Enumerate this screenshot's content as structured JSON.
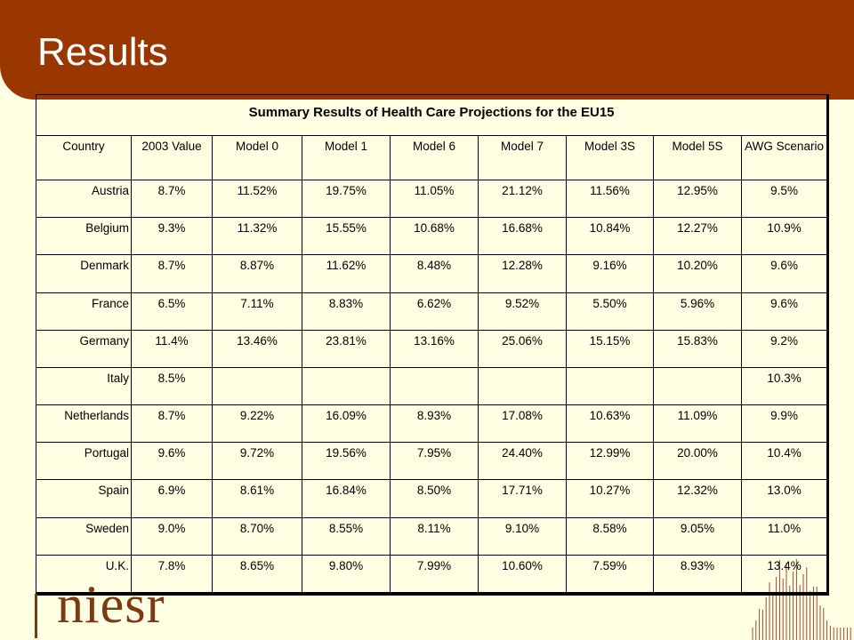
{
  "slide": {
    "title": "Results"
  },
  "table": {
    "caption": "Summary Results of Health Care Projections for the EU15",
    "headers": [
      "Country",
      "2003 Value",
      "Model 0",
      "Model 1",
      "Model 6",
      "Model 7",
      "Model 3S",
      "Model 5S",
      "AWG Scenario"
    ],
    "rows": [
      [
        "Austria",
        "8.7%",
        "11.52%",
        "19.75%",
        "11.05%",
        "21.12%",
        "11.56%",
        "12.95%",
        "9.5%"
      ],
      [
        "Belgium",
        "9.3%",
        "11.32%",
        "15.55%",
        "10.68%",
        "16.68%",
        "10.84%",
        "12.27%",
        "10.9%"
      ],
      [
        "Denmark",
        "8.7%",
        "8.87%",
        "11.62%",
        "8.48%",
        "12.28%",
        "9.16%",
        "10.20%",
        "9.6%"
      ],
      [
        "France",
        "6.5%",
        "7.11%",
        "8.83%",
        "6.62%",
        "9.52%",
        "5.50%",
        "5.96%",
        "9.6%"
      ],
      [
        "Germany",
        "11.4%",
        "13.46%",
        "23.81%",
        "13.16%",
        "25.06%",
        "15.15%",
        "15.83%",
        "9.2%"
      ],
      [
        "Italy",
        "8.5%",
        "",
        "",
        "",
        "",
        "",
        "",
        "10.3%"
      ],
      [
        "Netherlands",
        "8.7%",
        "9.22%",
        "16.09%",
        "8.93%",
        "17.08%",
        "10.63%",
        "11.09%",
        "9.9%"
      ],
      [
        "Portugal",
        "9.6%",
        "9.72%",
        "19.56%",
        "7.95%",
        "24.40%",
        "12.99%",
        "20.00%",
        "10.4%"
      ],
      [
        "Spain",
        "6.9%",
        "8.61%",
        "16.84%",
        "8.50%",
        "17.71%",
        "10.27%",
        "12.32%",
        "13.0%"
      ],
      [
        "Sweden",
        "9.0%",
        "8.70%",
        "8.55%",
        "8.11%",
        "9.10%",
        "8.58%",
        "9.05%",
        "11.0%"
      ],
      [
        "U.K.",
        "7.8%",
        "8.65%",
        "9.80%",
        "7.99%",
        "10.60%",
        "7.59%",
        "8.93%",
        "13.4%"
      ]
    ]
  },
  "logo": {
    "text": "niesr"
  },
  "colors": {
    "header": "#9a3600",
    "background": "#ffffe3",
    "logo": "#7a3a12"
  }
}
